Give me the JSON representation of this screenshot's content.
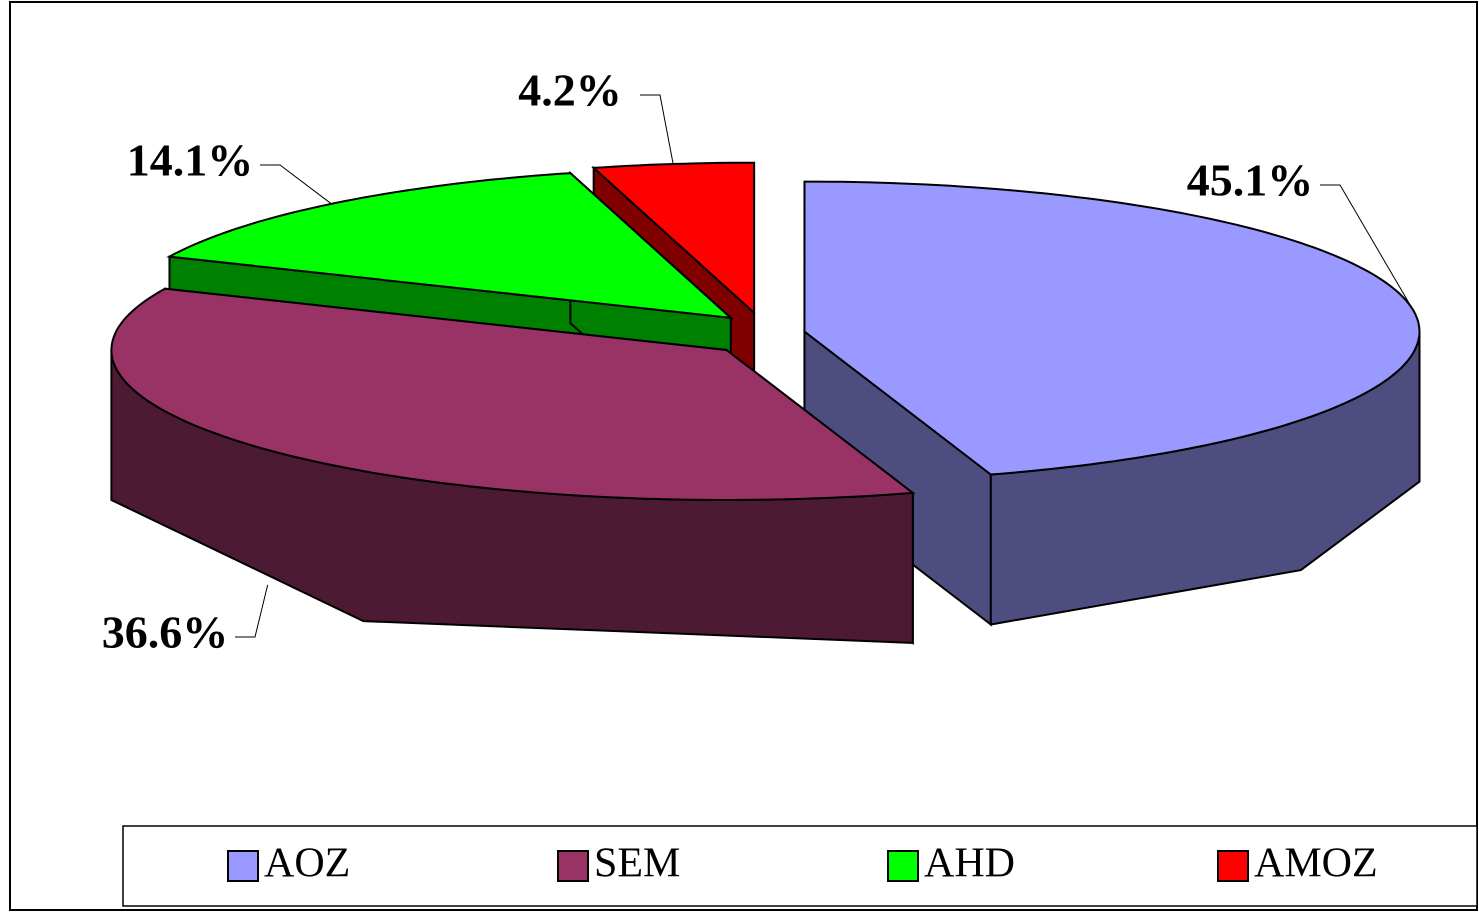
{
  "chart_data": {
    "type": "pie",
    "categories": [
      "AOZ",
      "SEM",
      "AHD",
      "AMOZ"
    ],
    "values": [
      45.1,
      36.6,
      14.1,
      4.2
    ],
    "value_labels": [
      "45.1%",
      "36.6%",
      "14.1%",
      "4.2%"
    ],
    "colors": [
      "#9999ff",
      "#993366",
      "#00ff00",
      "#ff0000"
    ],
    "legend": "bottom"
  }
}
